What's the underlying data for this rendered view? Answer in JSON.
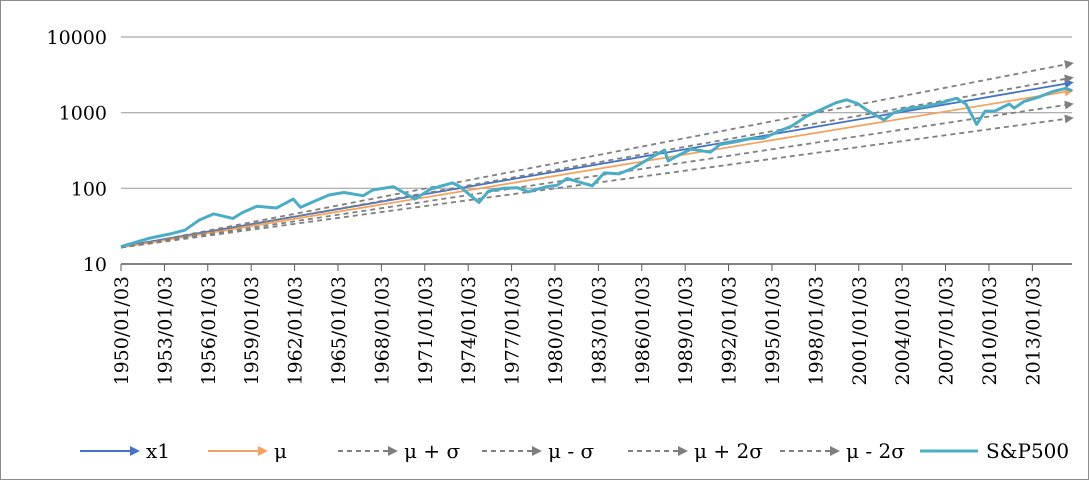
{
  "chart_data": {
    "type": "line",
    "title": "",
    "xlabel": "",
    "ylabel": "",
    "y_scale": "log",
    "ylim": [
      10,
      10000
    ],
    "y_ticks": [
      "10",
      "100",
      "1000",
      "10000"
    ],
    "x_range": [
      "1950/01/03",
      "2015/10/01"
    ],
    "x_ticks": [
      "1950/01/03",
      "1953/01/03",
      "1956/01/03",
      "1959/01/03",
      "1962/01/03",
      "1965/01/03",
      "1968/01/03",
      "1971/01/03",
      "1974/01/03",
      "1977/01/03",
      "1980/01/03",
      "1983/01/03",
      "1986/01/03",
      "1989/01/03",
      "1992/01/03",
      "1995/01/03",
      "1998/01/03",
      "2001/01/03",
      "2004/01/03",
      "2007/01/03",
      "2010/01/03",
      "2013/01/03"
    ],
    "grid": "horizontal",
    "legend_position": "bottom",
    "series": [
      {
        "name": "x1",
        "color": "#4472c4",
        "style": "solid-arrow",
        "x": [
          "1950/01/03",
          "2015/10/01"
        ],
        "y": [
          17,
          2500
        ]
      },
      {
        "name": "μ",
        "color": "#f4a460",
        "style": "solid-arrow",
        "x": [
          "1950/01/03",
          "2015/10/01"
        ],
        "y": [
          16.5,
          1950
        ]
      },
      {
        "name": "μ + σ",
        "color": "#7f7f7f",
        "style": "dashed-arrow",
        "x": [
          "1950/01/03",
          "2015/10/01"
        ],
        "y": [
          16.5,
          2900
        ]
      },
      {
        "name": "μ - σ",
        "color": "#7f7f7f",
        "style": "dashed-arrow",
        "x": [
          "1950/01/03",
          "2015/10/01"
        ],
        "y": [
          16.5,
          1300
        ]
      },
      {
        "name": "μ + 2σ",
        "color": "#7f7f7f",
        "style": "dashed-arrow",
        "x": [
          "1950/01/03",
          "2015/10/01"
        ],
        "y": [
          16.5,
          4500
        ]
      },
      {
        "name": "μ - 2σ",
        "color": "#7f7f7f",
        "style": "dashed-arrow",
        "x": [
          "1950/01/03",
          "2015/10/01"
        ],
        "y": [
          16.5,
          850
        ]
      },
      {
        "name": "S&P500",
        "color": "#4bacc6",
        "style": "solid",
        "x": [
          "1950/01/03",
          "1952/01/03",
          "1953/06/01",
          "1954/06/01",
          "1955/06/01",
          "1956/06/01",
          "1957/10/01",
          "1958/06/01",
          "1959/06/01",
          "1960/10/01",
          "1961/12/01",
          "1962/06/01",
          "1963/06/01",
          "1964/06/01",
          "1965/06/01",
          "1966/10/01",
          "1967/06/01",
          "1968/11/01",
          "1970/05/01",
          "1971/06/01",
          "1972/12/01",
          "1973/06/01",
          "1974/10/01",
          "1975/06/01",
          "1976/06/01",
          "1977/06/01",
          "1978/03/01",
          "1979/06/01",
          "1980/03/01",
          "1980/11/01",
          "1982/08/01",
          "1983/06/01",
          "1984/06/01",
          "1985/06/01",
          "1986/06/01",
          "1987/08/01",
          "1987/11/01",
          "1988/06/01",
          "1989/06/01",
          "1990/10/01",
          "1991/06/01",
          "1992/06/01",
          "1993/06/01",
          "1994/06/01",
          "1995/06/01",
          "1996/06/01",
          "1997/06/01",
          "1998/06/01",
          "1999/06/01",
          "2000/03/01",
          "2000/12/01",
          "2001/09/01",
          "2002/10/01",
          "2003/06/01",
          "2004/06/01",
          "2005/06/01",
          "2006/06/01",
          "2007/10/01",
          "2008/06/01",
          "2009/03/01",
          "2009/10/01",
          "2010/06/01",
          "2011/06/01",
          "2011/10/01",
          "2012/06/01",
          "2013/06/01",
          "2014/06/01",
          "2015/05/01",
          "2015/10/01"
        ],
        "y": [
          17,
          22,
          25,
          28,
          38,
          46,
          40,
          48,
          58,
          55,
          72,
          56,
          68,
          82,
          88,
          80,
          95,
          105,
          72,
          98,
          118,
          106,
          65,
          92,
          100,
          102,
          90,
          105,
          110,
          135,
          108,
          160,
          155,
          185,
          240,
          320,
          230,
          265,
          330,
          300,
          380,
          410,
          450,
          460,
          560,
          670,
          900,
          1100,
          1350,
          1480,
          1320,
          1050,
          800,
          1000,
          1140,
          1200,
          1300,
          1550,
          1300,
          700,
          1050,
          1050,
          1300,
          1150,
          1400,
          1600,
          1900,
          2100,
          1950
        ]
      }
    ]
  }
}
